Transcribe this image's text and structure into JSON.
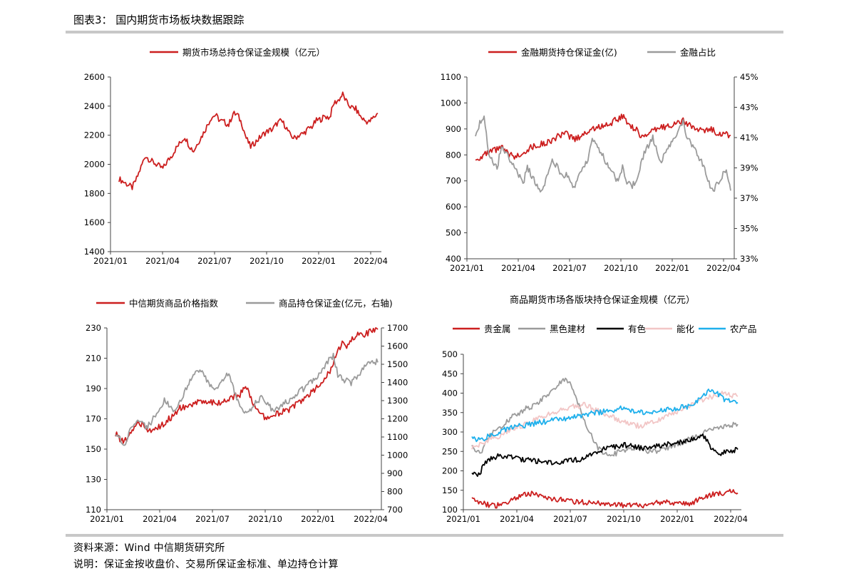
{
  "figure": {
    "title": "图表3： 国内期货市场板块数据跟踪",
    "source": "资料来源：Wind 中信期货研究所",
    "note": "说明：保证金按收盘价、交易所保证金标准、单边持仓计算"
  },
  "colors": {
    "red": "#cc1f1f",
    "gray": "#9b9b9b",
    "black": "#000000",
    "pink": "#f2c6c6",
    "blue": "#1fb0ec"
  },
  "chart_data": [
    {
      "type": "line",
      "title": "",
      "legend": [
        "期货市场总持仓保证金规模（亿元）"
      ],
      "x_ticks": [
        "2021/01",
        "2021/04",
        "2021/07",
        "2021/10",
        "2022/01",
        "2022/04"
      ],
      "ylim": [
        1400,
        2600
      ],
      "y_ticks": [
        "1400",
        "1600",
        "1800",
        "2000",
        "2200",
        "2400",
        "2600"
      ],
      "series": [
        {
          "name": "期货市场总持仓保证金规模（亿元）",
          "color": "red",
          "axis": "left",
          "values": [
            1900,
            1880,
            1860,
            1840,
            1900,
            1980,
            2060,
            2030,
            2010,
            1990,
            1970,
            2020,
            2060,
            2110,
            2150,
            2190,
            2130,
            2090,
            2150,
            2200,
            2260,
            2320,
            2340,
            2300,
            2290,
            2270,
            2350,
            2340,
            2280,
            2180,
            2120,
            2150,
            2180,
            2210,
            2230,
            2240,
            2280,
            2300,
            2260,
            2200,
            2180,
            2200,
            2210,
            2240,
            2260,
            2300,
            2310,
            2330,
            2320,
            2420,
            2440,
            2480,
            2420,
            2390,
            2380,
            2330,
            2300,
            2290,
            2320,
            2350
          ]
        }
      ]
    },
    {
      "type": "line",
      "title": "",
      "legend": [
        "金融期货持仓保证金(亿)",
        "金融占比"
      ],
      "x_ticks": [
        "2021/01",
        "2021/04",
        "2021/07",
        "2021/10",
        "2022/01",
        "2022/04"
      ],
      "ylim": [
        400,
        1100
      ],
      "y_ticks": [
        "400",
        "500",
        "600",
        "700",
        "800",
        "900",
        "1000",
        "1100"
      ],
      "y2lim": [
        33,
        45
      ],
      "y2_ticks": [
        "33%",
        "35%",
        "37%",
        "39%",
        "41%",
        "43%",
        "45%"
      ],
      "series": [
        {
          "name": "金融期货持仓保证金(亿)",
          "color": "red",
          "axis": "left",
          "values": [
            780,
            790,
            800,
            805,
            815,
            820,
            830,
            810,
            800,
            790,
            800,
            810,
            820,
            830,
            835,
            840,
            845,
            850,
            860,
            870,
            875,
            880,
            870,
            860,
            870,
            880,
            890,
            900,
            905,
            910,
            915,
            920,
            930,
            940,
            950,
            930,
            910,
            900,
            880,
            870,
            880,
            890,
            900,
            905,
            910,
            915,
            920,
            925,
            930,
            920,
            910,
            900,
            895,
            890,
            900,
            895,
            885,
            880,
            878,
            875
          ]
        },
        {
          "name": "金融占比",
          "color": "gray",
          "axis": "right",
          "values": [
            41,
            42,
            42.5,
            40,
            39.5,
            39,
            40.5,
            40,
            39.5,
            39,
            38.5,
            38,
            39,
            38.5,
            38,
            37.5,
            38,
            39,
            39.5,
            39,
            38.5,
            38.5,
            38,
            37.8,
            38.5,
            39,
            39.5,
            41,
            40.5,
            40,
            39.5,
            39,
            38.5,
            38,
            39,
            38,
            37.8,
            38,
            39,
            40,
            40.5,
            41,
            40,
            39.5,
            40,
            40.5,
            41,
            41.5,
            42,
            41,
            40.5,
            40,
            39.5,
            39,
            38,
            37.5,
            38,
            38.5,
            39,
            37.5
          ]
        }
      ]
    },
    {
      "type": "line",
      "title": "",
      "legend": [
        "中信期货商品价格指数",
        "商品持仓保证金(亿元，右轴)"
      ],
      "x_ticks": [
        "2021/01",
        "2021/04",
        "2021/07",
        "2021/10",
        "2022/01",
        "2022/04"
      ],
      "ylim": [
        110,
        230
      ],
      "y_ticks": [
        "110",
        "130",
        "150",
        "170",
        "190",
        "210",
        "230"
      ],
      "y2lim": [
        700,
        1700
      ],
      "y2_ticks": [
        "700",
        "800",
        "900",
        "1000",
        "1100",
        "1200",
        "1300",
        "1400",
        "1500",
        "1600",
        "1700"
      ],
      "series": [
        {
          "name": "中信期货商品价格指数",
          "color": "red",
          "axis": "left",
          "values": [
            160,
            157,
            155,
            158,
            163,
            167,
            166,
            164,
            162,
            163,
            165,
            167,
            170,
            172,
            176,
            178,
            177,
            178,
            180,
            181,
            182,
            182,
            181,
            180,
            181,
            182,
            184,
            185,
            186,
            190,
            188,
            180,
            175,
            172,
            171,
            172,
            173,
            174,
            175,
            176,
            178,
            180,
            182,
            185,
            188,
            190,
            192,
            196,
            200,
            207,
            215,
            220,
            218,
            222,
            225,
            228,
            226,
            227,
            228,
            229
          ]
        },
        {
          "name": "商品持仓保证金(亿元，右轴)",
          "color": "gray",
          "axis": "right",
          "values": [
            1110,
            1090,
            1050,
            1120,
            1170,
            1190,
            1170,
            1150,
            1180,
            1220,
            1260,
            1300,
            1280,
            1240,
            1270,
            1320,
            1370,
            1420,
            1450,
            1470,
            1430,
            1390,
            1360,
            1380,
            1400,
            1440,
            1420,
            1330,
            1260,
            1230,
            1240,
            1280,
            1300,
            1320,
            1290,
            1260,
            1250,
            1270,
            1290,
            1300,
            1320,
            1340,
            1360,
            1380,
            1400,
            1420,
            1460,
            1480,
            1520,
            1550,
            1440,
            1420,
            1410,
            1400,
            1430,
            1450,
            1480,
            1500,
            1520,
            1510
          ]
        }
      ]
    },
    {
      "type": "line",
      "title": "商品期货市场各版块持仓保证金规模（亿元）",
      "legend": [
        "贵金属",
        "黑色建材",
        "有色",
        "能化",
        "农产品"
      ],
      "x_ticks": [
        "2021/01",
        "2021/04",
        "2021/07",
        "2021/10",
        "2022/01",
        "2022/04"
      ],
      "ylim": [
        100,
        500
      ],
      "y_ticks": [
        "100",
        "150",
        "200",
        "250",
        "300",
        "350",
        "400",
        "450",
        "500"
      ],
      "series": [
        {
          "name": "贵金属",
          "color": "red",
          "axis": "left",
          "values": [
            125,
            122,
            118,
            115,
            112,
            110,
            112,
            115,
            120,
            125,
            130,
            135,
            140,
            142,
            138,
            135,
            132,
            130,
            128,
            126,
            125,
            124,
            122,
            121,
            120,
            119,
            118,
            117,
            116,
            115,
            115,
            114,
            113,
            112,
            112,
            111,
            111,
            110,
            110,
            112,
            115,
            118,
            120,
            122,
            120,
            118,
            116,
            115,
            114,
            118,
            125,
            130,
            135,
            138,
            140,
            142,
            144,
            146,
            145,
            143
          ]
        },
        {
          "name": "黑色建材",
          "color": "gray",
          "axis": "left",
          "values": [
            260,
            250,
            245,
            270,
            290,
            300,
            310,
            320,
            330,
            340,
            345,
            350,
            360,
            365,
            370,
            380,
            390,
            400,
            410,
            420,
            430,
            435,
            420,
            390,
            360,
            330,
            300,
            280,
            260,
            250,
            245,
            240,
            245,
            250,
            255,
            260,
            260,
            258,
            255,
            252,
            250,
            252,
            255,
            258,
            262,
            266,
            270,
            275,
            280,
            285,
            290,
            295,
            300,
            305,
            310,
            312,
            314,
            316,
            318,
            320
          ]
        },
        {
          "name": "有色",
          "color": "black",
          "axis": "left",
          "values": [
            195,
            190,
            200,
            220,
            230,
            235,
            240,
            238,
            236,
            234,
            232,
            230,
            228,
            226,
            225,
            224,
            222,
            220,
            218,
            220,
            222,
            224,
            226,
            228,
            230,
            235,
            240,
            245,
            250,
            255,
            258,
            260,
            262,
            264,
            266,
            264,
            262,
            260,
            258,
            260,
            262,
            264,
            266,
            268,
            270,
            272,
            274,
            276,
            278,
            280,
            285,
            290,
            280,
            260,
            250,
            245,
            248,
            250,
            252,
            255
          ]
        },
        {
          "name": "能化",
          "color": "pink",
          "axis": "left",
          "values": [
            260,
            265,
            270,
            275,
            280,
            285,
            290,
            295,
            300,
            305,
            310,
            315,
            320,
            325,
            330,
            335,
            340,
            345,
            350,
            355,
            360,
            362,
            364,
            366,
            368,
            370,
            365,
            360,
            355,
            350,
            345,
            340,
            335,
            330,
            325,
            320,
            318,
            316,
            318,
            320,
            325,
            330,
            335,
            340,
            345,
            350,
            355,
            360,
            365,
            370,
            375,
            380,
            385,
            390,
            395,
            400,
            398,
            396,
            394,
            392
          ]
        },
        {
          "name": "农产品",
          "color": "blue",
          "axis": "left",
          "values": [
            285,
            282,
            280,
            285,
            290,
            295,
            300,
            305,
            310,
            312,
            314,
            316,
            318,
            320,
            322,
            324,
            326,
            328,
            330,
            332,
            334,
            336,
            338,
            340,
            342,
            344,
            346,
            348,
            350,
            352,
            354,
            356,
            358,
            360,
            358,
            356,
            354,
            352,
            350,
            348,
            350,
            352,
            354,
            356,
            358,
            360,
            362,
            364,
            366,
            370,
            380,
            390,
            400,
            410,
            405,
            395,
            385,
            380,
            378,
            376
          ]
        }
      ]
    }
  ]
}
